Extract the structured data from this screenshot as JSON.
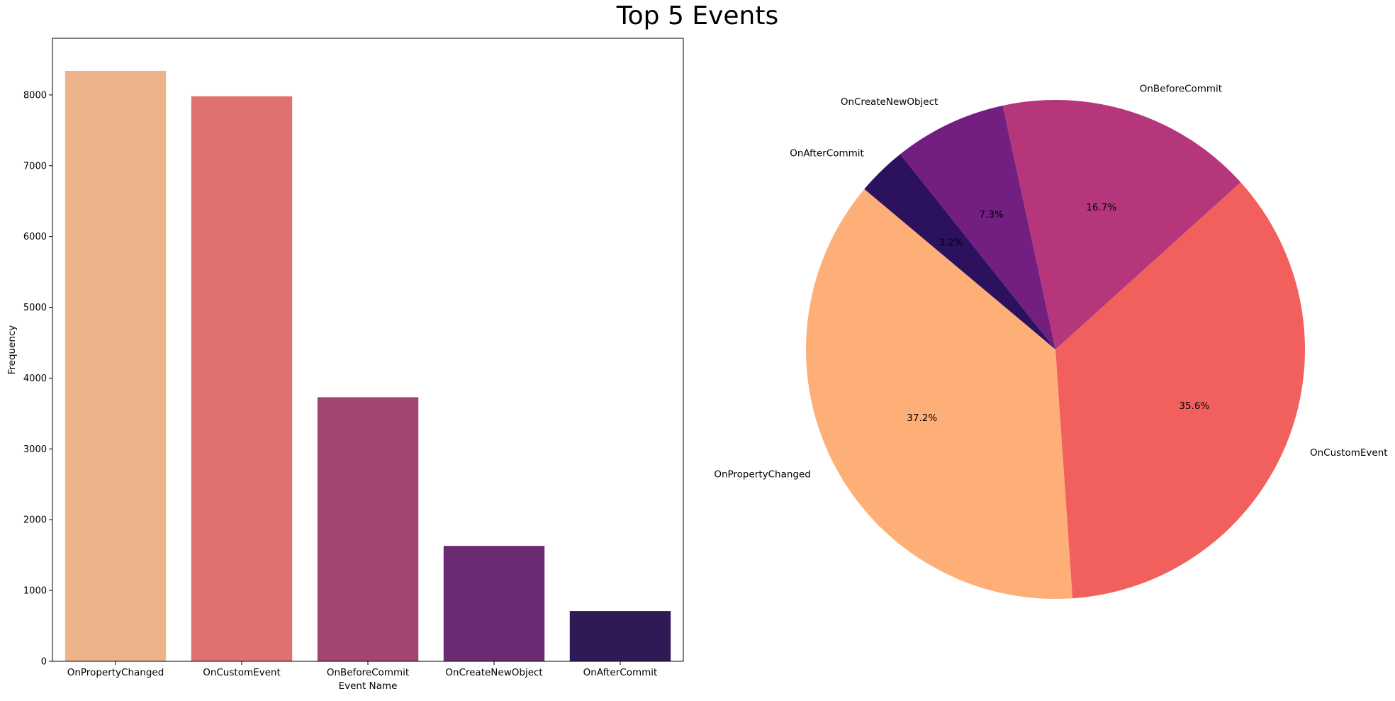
{
  "figure": {
    "title": "Top 5 Events"
  },
  "chart_data": [
    {
      "type": "bar",
      "title": "",
      "xlabel": "Event Name",
      "ylabel": "Frequency",
      "categories": [
        "OnPropertyChanged",
        "OnCustomEvent",
        "OnBeforeCommit",
        "OnCreateNewObject",
        "OnAfterCommit"
      ],
      "values": [
        8340,
        7980,
        3730,
        1630,
        710
      ],
      "colors": [
        "#edb38a",
        "#df7270",
        "#a34573",
        "#6a2b73",
        "#2f1a55"
      ],
      "ylim": [
        0,
        8800
      ],
      "yticks": [
        0,
        1000,
        2000,
        3000,
        4000,
        5000,
        6000,
        7000,
        8000
      ],
      "grid": false
    },
    {
      "type": "pie",
      "title": "",
      "labels": [
        "OnPropertyChanged",
        "OnCustomEvent",
        "OnBeforeCommit",
        "OnCreateNewObject",
        "OnAfterCommit"
      ],
      "percentages": [
        37.2,
        35.6,
        16.7,
        7.3,
        3.2
      ],
      "pct_labels": [
        "37.2%",
        "35.6%",
        "16.7%",
        "7.3%",
        "3.2%"
      ],
      "colors": [
        "#feaf78",
        "#f1605d",
        "#b5367a",
        "#721f81",
        "#2c115f"
      ],
      "start_angle_deg": 140,
      "direction": "counterclockwise"
    }
  ]
}
